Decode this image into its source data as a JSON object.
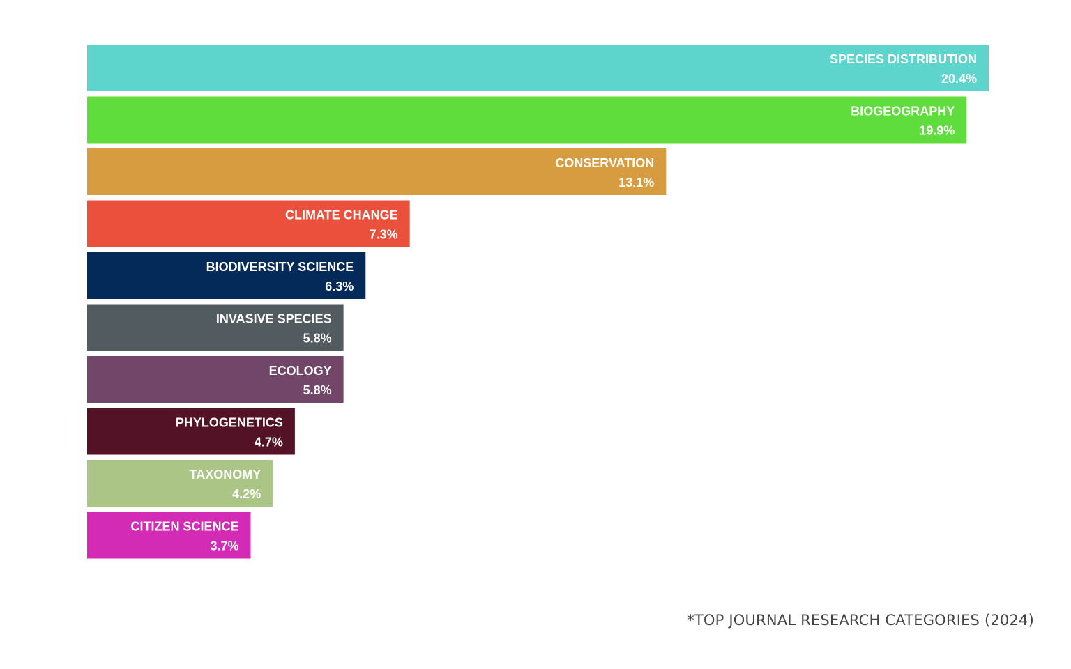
{
  "chart_data": {
    "type": "bar",
    "orientation": "horizontal",
    "categories": [
      "SPECIES DISTRIBUTION",
      "BIOGEOGRAPHY",
      "CONSERVATION",
      "CLIMATE CHANGE",
      "BIODIVERSITY SCIENCE",
      "INVASIVE SPECIES",
      "ECOLOGY",
      "PHYLOGENETICS",
      "TAXONOMY",
      "CITIZEN SCIENCE"
    ],
    "values": [
      20.4,
      19.9,
      13.1,
      7.3,
      6.3,
      5.8,
      5.8,
      4.7,
      4.2,
      3.7
    ],
    "value_labels": [
      "20.4%",
      "19.9%",
      "13.1%",
      "7.3%",
      "6.3%",
      "5.8%",
      "5.8%",
      "4.7%",
      "4.2%",
      "3.7%"
    ],
    "colors": [
      "#5dd5cc",
      "#5edd3d",
      "#d89c40",
      "#ea503b",
      "#042a5a",
      "#525b5f",
      "#724669",
      "#541226",
      "#abc586",
      "#d42bb7"
    ],
    "title": "",
    "xlabel": "",
    "ylabel": "",
    "grid": false,
    "legend": "none",
    "labels_inside_bars": true
  },
  "footnote": "*TOP JOURNAL RESEARCH CATEGORIES (2024)"
}
